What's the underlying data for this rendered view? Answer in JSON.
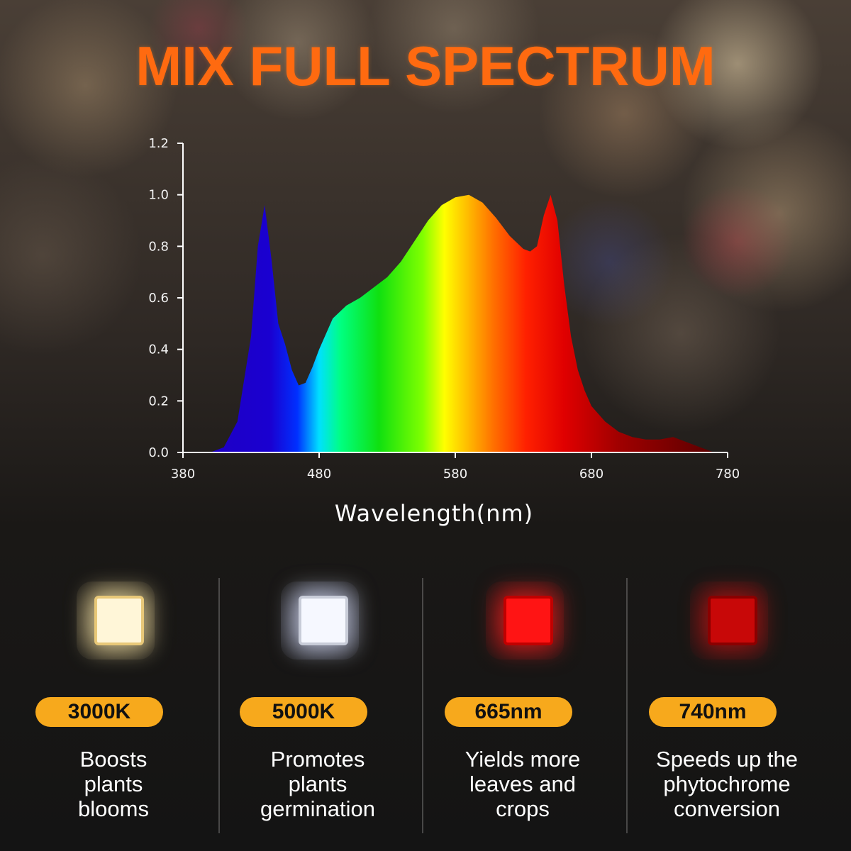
{
  "title": "MIX FULL SPECTRUM",
  "colors": {
    "title": "#ff6a10",
    "badge": "#f7a91c",
    "led_3000k": "#fff3cf",
    "led_5000k": "#f4f6ff",
    "led_665nm": "#ff1010",
    "led_740nm": "#d00808"
  },
  "chart_data": {
    "type": "area",
    "title": "",
    "xlabel": "Wavelength(nm)",
    "ylabel": "",
    "xlim": [
      380,
      780
    ],
    "ylim": [
      0,
      1.2
    ],
    "x_ticks": [
      "380",
      "480",
      "580",
      "680",
      "780"
    ],
    "y_ticks": [
      "0.0",
      "0.2",
      "0.4",
      "0.6",
      "0.8",
      "1.0",
      "1.2"
    ],
    "grid": false,
    "fill": "visible-spectrum gradient",
    "series": [
      {
        "x": [
          400,
          410,
          420,
          430,
          435,
          440,
          445,
          450,
          455,
          460,
          465,
          470,
          475,
          480,
          490,
          500,
          510,
          520,
          530,
          540,
          550,
          560,
          570,
          580,
          590,
          600,
          610,
          620,
          630,
          635,
          640,
          645,
          650,
          655,
          660,
          665,
          670,
          675,
          680,
          690,
          700,
          710,
          720,
          730,
          740,
          750,
          760,
          770
        ],
        "y": [
          0.0,
          0.02,
          0.12,
          0.45,
          0.8,
          0.96,
          0.75,
          0.5,
          0.42,
          0.32,
          0.26,
          0.27,
          0.33,
          0.4,
          0.52,
          0.57,
          0.6,
          0.64,
          0.68,
          0.74,
          0.82,
          0.9,
          0.96,
          0.99,
          1.0,
          0.97,
          0.91,
          0.84,
          0.79,
          0.78,
          0.8,
          0.92,
          1.0,
          0.9,
          0.65,
          0.45,
          0.32,
          0.24,
          0.18,
          0.12,
          0.08,
          0.06,
          0.05,
          0.05,
          0.06,
          0.04,
          0.02,
          0.0
        ]
      }
    ]
  },
  "leds": [
    {
      "label": "3000K",
      "desc": [
        "Boosts",
        "plants",
        "blooms"
      ]
    },
    {
      "label": "5000K",
      "desc": [
        "Promotes",
        "plants",
        "germination"
      ]
    },
    {
      "label": "665nm",
      "desc": [
        "Yields more",
        "leaves and",
        "crops"
      ]
    },
    {
      "label": "740nm",
      "desc": [
        "Speeds up the",
        "phytochrome",
        "conversion"
      ]
    }
  ]
}
